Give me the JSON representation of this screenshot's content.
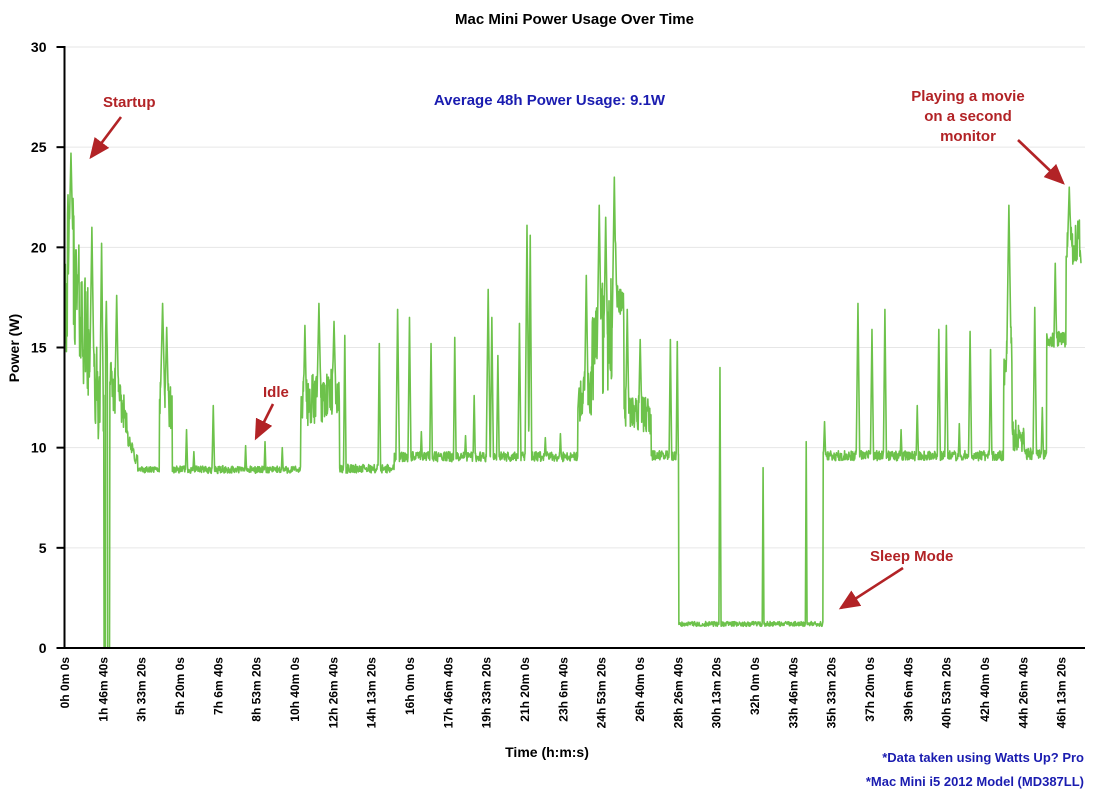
{
  "colors": {
    "line_green": "#6dc24b",
    "red_annotation": "#b22326",
    "blue_text": "#1a1cb0",
    "gridline": "#e6e6e6",
    "axis": "#000000"
  },
  "annotations": {
    "average": {
      "text": "Average 48h Power Usage: 9.1W"
    },
    "startup": {
      "label": "Startup"
    },
    "idle": {
      "label": "Idle"
    },
    "sleep": {
      "label": "Sleep Mode"
    },
    "movie": {
      "lines": [
        "Playing a movie",
        "on a second",
        "monitor"
      ]
    }
  },
  "footnotes": [
    "*Data taken using Watts Up? Pro",
    "*Mac Mini i5 2012 Model (MD387LL)"
  ],
  "chart_data": {
    "type": "line",
    "title": "Mac Mini Power Usage Over Time",
    "xlabel": "Time (h:m:s)",
    "ylabel": "Power (W)",
    "ylim": [
      0,
      30
    ],
    "yticks": [
      0,
      5,
      10,
      15,
      20,
      25,
      30
    ],
    "grid": "horizontal gridlines at each 5 W",
    "legend": "none",
    "x_hours_max": 47.33,
    "xtick_step_hours": 1.7777778,
    "xtick_labels": [
      "0h 0m 0s",
      "1h 46m 40s",
      "3h 33m 20s",
      "5h 20m 0s",
      "7h 6m 40s",
      "8h 53m 20s",
      "10h 40m 0s",
      "12h 26m 40s",
      "14h 13m 20s",
      "16h 0m 0s",
      "17h 46m 40s",
      "19h 33m 20s",
      "21h 20m 0s",
      "23h 6m 40s",
      "24h 53m 20s",
      "26h 40m 0s",
      "28h 26m 40s",
      "30h 13m 20s",
      "32h 0m 0s",
      "33h 46m 40s",
      "35h 33m 20s",
      "37h 20m 0s",
      "39h 6m 40s",
      "40h 53m 20s",
      "42h 40m 0s",
      "44h 26m 40s",
      "46h 13m 20s"
    ],
    "levels_summary": {
      "startup_peak_w": 24.7,
      "idle_w": 8.9,
      "idle_later_w": 9.6,
      "sleep_w": 1.2,
      "movie_peak_w": 23.0,
      "average_48h_w": 9.1,
      "sleep_window_hours": [
        28.5,
        35.2
      ]
    },
    "noise_seed": 42,
    "sample_step_hours": 0.018,
    "baseline_segments": [
      [
        0.0,
        0.5,
        18.5,
        19.0,
        4.0
      ],
      [
        0.5,
        1.1,
        18.0,
        15.0,
        3.0
      ],
      [
        1.1,
        1.58,
        14.0,
        12.5,
        2.3
      ],
      [
        1.58,
        1.82,
        12.2,
        12.2,
        1.4
      ],
      [
        1.82,
        1.9,
        0,
        0,
        0
      ],
      [
        1.9,
        1.99,
        15.0,
        13.5,
        1.5
      ],
      [
        1.99,
        2.09,
        0,
        0,
        0
      ],
      [
        2.09,
        2.5,
        13.2,
        12.6,
        1.2
      ],
      [
        2.5,
        2.95,
        12.4,
        11.4,
        0.9
      ],
      [
        2.95,
        3.4,
        10.3,
        9.3,
        0.4
      ],
      [
        3.4,
        4.4,
        8.9,
        8.9,
        0.15
      ],
      [
        4.4,
        5.0,
        12.6,
        12.0,
        1.2
      ],
      [
        5.0,
        6.5,
        8.9,
        8.9,
        0.18
      ],
      [
        6.5,
        7.4,
        8.9,
        8.9,
        0.2
      ],
      [
        7.4,
        10.95,
        8.9,
        8.9,
        0.18
      ],
      [
        10.95,
        12.75,
        12.2,
        12.8,
        1.3
      ],
      [
        12.75,
        15.3,
        8.95,
        8.95,
        0.22
      ],
      [
        15.3,
        23.8,
        9.55,
        9.55,
        0.25
      ],
      [
        23.8,
        24.45,
        12.0,
        13.0,
        1.4
      ],
      [
        24.45,
        25.55,
        15.0,
        16.0,
        2.8
      ],
      [
        25.55,
        25.95,
        18.0,
        17.0,
        0.8
      ],
      [
        25.95,
        27.2,
        12.0,
        11.5,
        0.9
      ],
      [
        27.2,
        28.48,
        9.6,
        9.6,
        0.25
      ],
      [
        28.48,
        35.18,
        1.2,
        1.2,
        0.12
      ],
      [
        35.18,
        43.55,
        9.6,
        9.6,
        0.25
      ],
      [
        43.55,
        43.95,
        14.0,
        15.0,
        1.2
      ],
      [
        43.95,
        44.5,
        10.6,
        10.6,
        0.8
      ],
      [
        44.5,
        45.55,
        9.7,
        9.7,
        0.3
      ],
      [
        45.55,
        46.45,
        15.4,
        15.4,
        0.4
      ],
      [
        46.45,
        47.15,
        20.0,
        20.5,
        1.3
      ]
    ],
    "spikes": [
      [
        0.3,
        24.7,
        0.12
      ],
      [
        1.27,
        21.0,
        0.1
      ],
      [
        1.72,
        20.2,
        0.08
      ],
      [
        1.94,
        17.3,
        0.05
      ],
      [
        2.42,
        17.6,
        0.08
      ],
      [
        4.55,
        17.2,
        0.1
      ],
      [
        4.74,
        16.0,
        0.08
      ],
      [
        5.66,
        10.9,
        0.05
      ],
      [
        6.0,
        9.8,
        0.04
      ],
      [
        6.9,
        12.1,
        0.06
      ],
      [
        8.4,
        10.1,
        0.04
      ],
      [
        9.3,
        10.3,
        0.04
      ],
      [
        10.1,
        10.0,
        0.04
      ],
      [
        11.15,
        16.1,
        0.07
      ],
      [
        11.8,
        17.2,
        0.09
      ],
      [
        12.5,
        16.3,
        0.08
      ],
      [
        13.0,
        15.6,
        0.06
      ],
      [
        14.6,
        15.2,
        0.06
      ],
      [
        15.45,
        16.9,
        0.08
      ],
      [
        16.0,
        16.5,
        0.07
      ],
      [
        16.55,
        10.8,
        0.04
      ],
      [
        17.0,
        15.2,
        0.06
      ],
      [
        18.1,
        15.5,
        0.06
      ],
      [
        18.6,
        10.6,
        0.04
      ],
      [
        19.0,
        12.6,
        0.05
      ],
      [
        19.65,
        17.9,
        0.09
      ],
      [
        19.82,
        16.5,
        0.07
      ],
      [
        20.1,
        14.6,
        0.06
      ],
      [
        21.1,
        16.2,
        0.07
      ],
      [
        21.45,
        21.1,
        0.09
      ],
      [
        21.6,
        20.6,
        0.07
      ],
      [
        22.3,
        10.5,
        0.04
      ],
      [
        23.0,
        10.7,
        0.04
      ],
      [
        24.2,
        18.6,
        0.08
      ],
      [
        24.8,
        22.1,
        0.09
      ],
      [
        25.1,
        21.5,
        0.08
      ],
      [
        25.5,
        23.5,
        0.1
      ],
      [
        26.1,
        16.9,
        0.07
      ],
      [
        26.7,
        15.4,
        0.07
      ],
      [
        28.1,
        15.4,
        0.06
      ],
      [
        28.42,
        15.3,
        0.05
      ],
      [
        30.4,
        14.0,
        0.05
      ],
      [
        32.4,
        9.0,
        0.04
      ],
      [
        34.4,
        10.3,
        0.04
      ],
      [
        35.25,
        11.3,
        0.05
      ],
      [
        36.8,
        17.2,
        0.08
      ],
      [
        37.45,
        15.9,
        0.07
      ],
      [
        38.05,
        16.9,
        0.07
      ],
      [
        38.8,
        10.9,
        0.04
      ],
      [
        39.55,
        12.1,
        0.05
      ],
      [
        40.55,
        15.9,
        0.07
      ],
      [
        40.9,
        16.1,
        0.07
      ],
      [
        41.5,
        11.2,
        0.04
      ],
      [
        42.0,
        15.8,
        0.07
      ],
      [
        42.95,
        14.9,
        0.06
      ],
      [
        43.8,
        22.1,
        0.1
      ],
      [
        45.0,
        17.0,
        0.08
      ],
      [
        45.35,
        12.0,
        0.05
      ],
      [
        45.95,
        19.2,
        0.06
      ],
      [
        46.6,
        23.0,
        0.08
      ]
    ]
  }
}
